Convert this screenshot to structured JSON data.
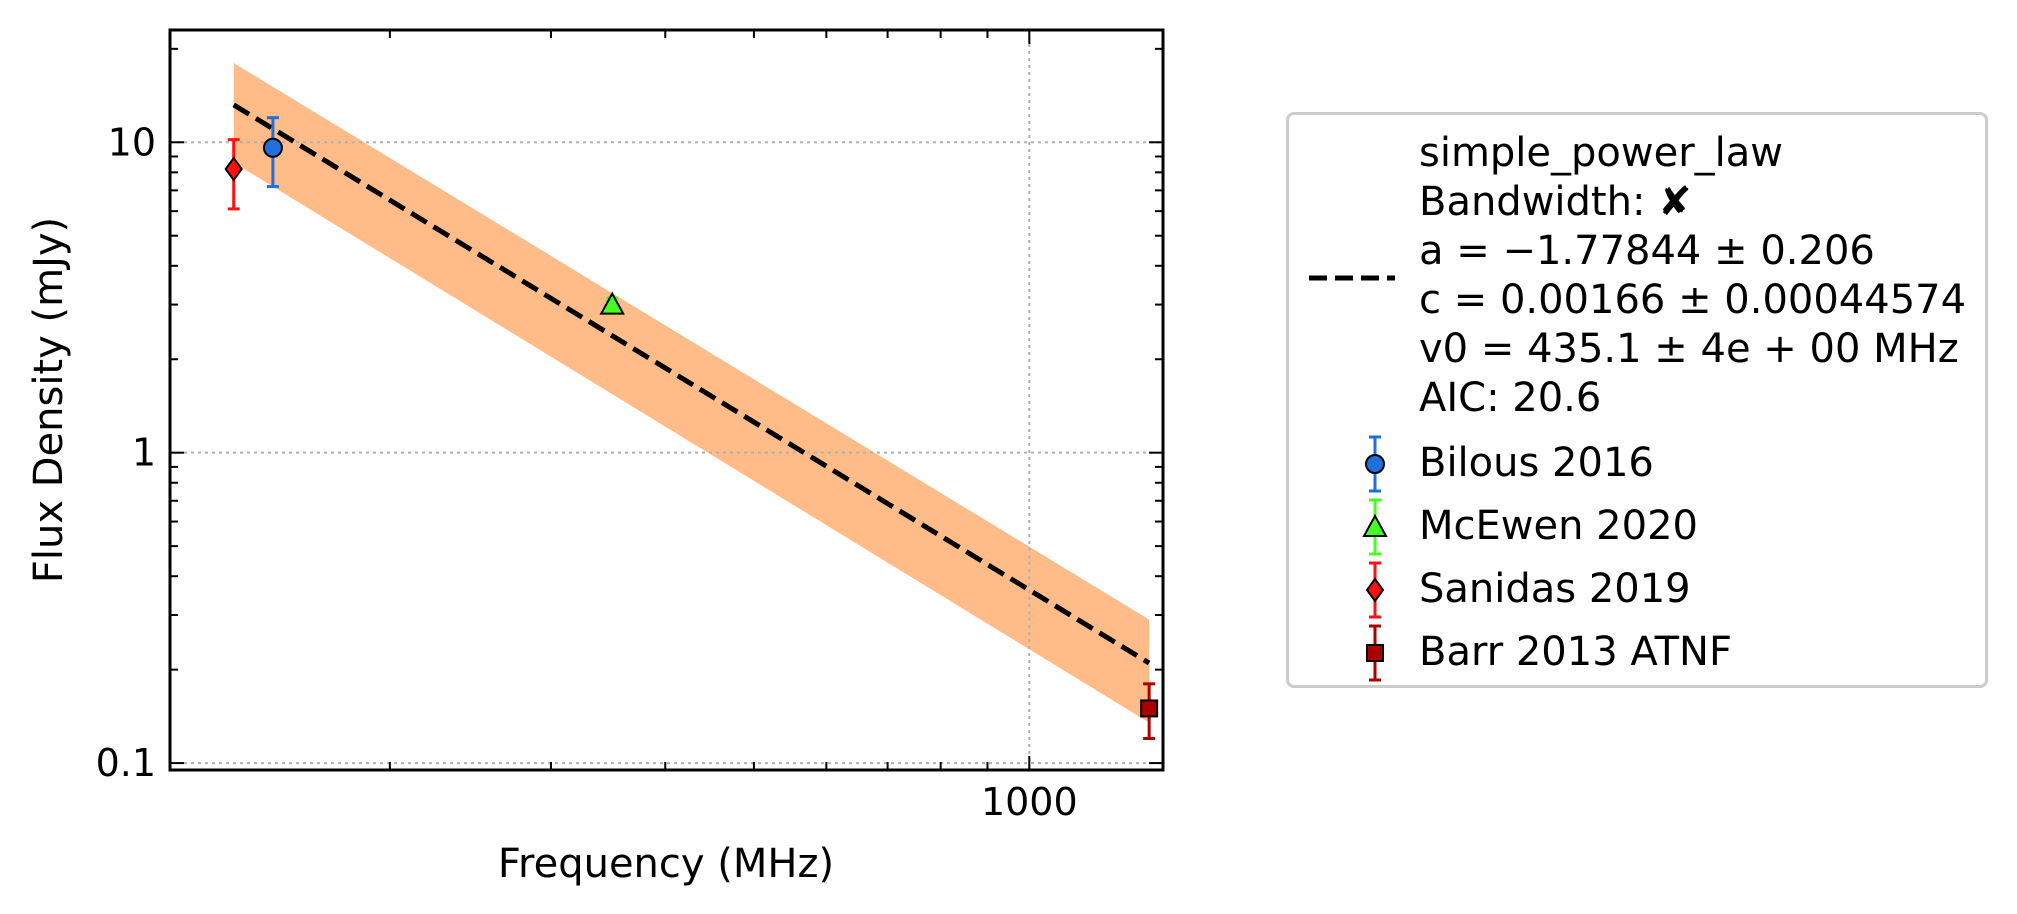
{
  "chart_data": {
    "type": "scatter",
    "xlabel": "Frequency (MHz)",
    "ylabel": "Flux Density (mJy)",
    "xscale": "log",
    "yscale": "log",
    "xlim": [
      115,
      1400
    ],
    "ylim": [
      0.095,
      23
    ],
    "x_ticks": [
      {
        "value": 1000,
        "label": "1000"
      }
    ],
    "y_ticks": [
      {
        "value": 0.1,
        "label": "0.1"
      },
      {
        "value": 1,
        "label": "1"
      },
      {
        "value": 10,
        "label": "10"
      }
    ],
    "grid": true,
    "legend_placement": "outside-right",
    "fit": {
      "name": "simple_power_law",
      "bandwidth_label": "Bandwidth:",
      "bandwidth_symbol": "✘",
      "a_line": "a = −1.77844 ± 0.206",
      "c_line": "c = 0.00166 ± 0.00044574",
      "v0_line": "v0 = 435.1 ± 4e + 00 MHz",
      "aic_line": "AIC: 20.6",
      "a": -1.77844,
      "c": 0.00166,
      "v0": 435.1,
      "x_range": [
        135,
        1352
      ],
      "y_start": 13.2,
      "y_end": 0.21,
      "band_upper": [
        [
          135,
          18.0
        ],
        [
          1352,
          0.29
        ]
      ],
      "band_lower": [
        [
          135,
          8.6
        ],
        [
          1352,
          0.135
        ]
      ],
      "line_color": "#000000",
      "band_color": "#ffbb88"
    },
    "series": [
      {
        "name": "Bilous 2016",
        "marker": "circle",
        "color": "#1f6fdc",
        "points": [
          {
            "x": 149,
            "y": 9.6,
            "yerr_low": 7.2,
            "yerr_high": 12.0
          }
        ]
      },
      {
        "name": "McEwen 2020",
        "marker": "triangle",
        "color": "#44ff22",
        "points": [
          {
            "x": 350,
            "y": 3.0,
            "yerr_low": 2.85,
            "yerr_high": 3.15
          }
        ]
      },
      {
        "name": "Sanidas 2019",
        "marker": "diamond",
        "color": "#ff1111",
        "points": [
          {
            "x": 135,
            "y": 8.2,
            "yerr_low": 6.1,
            "yerr_high": 10.2
          }
        ]
      },
      {
        "name": "Barr 2013 ATNF",
        "marker": "square",
        "color": "#aa0000",
        "points": [
          {
            "x": 1352,
            "y": 0.15,
            "yerr_low": 0.12,
            "yerr_high": 0.18
          }
        ]
      }
    ]
  }
}
